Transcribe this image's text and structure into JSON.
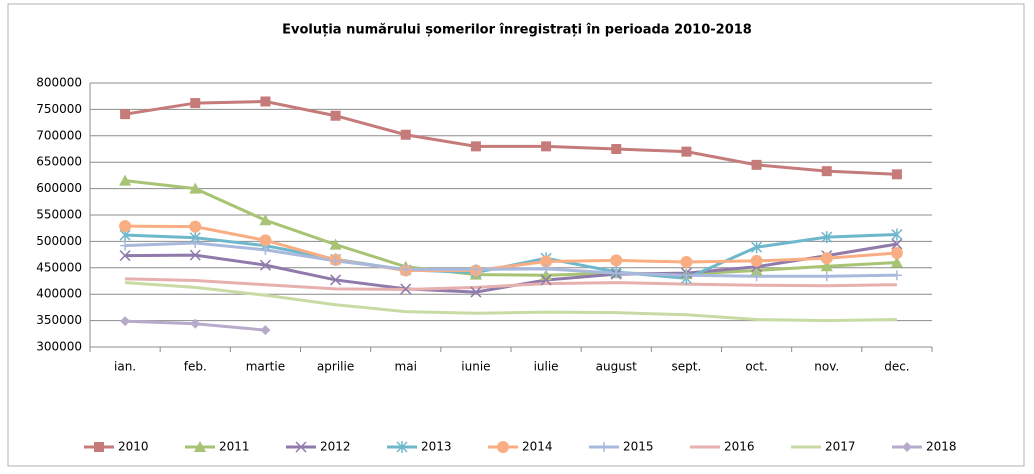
{
  "chart_data": {
    "type": "line",
    "title": "Evoluția numărului  șomerilor înregistrați în perioada 2010-2018",
    "categories": [
      "ian.",
      "feb.",
      "martie",
      "aprilie",
      "mai",
      "iunie",
      "iulie",
      "august",
      "sept.",
      "oct.",
      "nov.",
      "dec."
    ],
    "ylim": [
      300000,
      800000
    ],
    "yticks": [
      300000,
      350000,
      400000,
      450000,
      500000,
      550000,
      600000,
      650000,
      700000,
      750000,
      800000
    ],
    "grid": true,
    "legend": "bottom",
    "series": [
      {
        "name": "2010",
        "color": "#c57b79",
        "marker": "square",
        "values": [
          741000,
          762000,
          765000,
          738000,
          702000,
          680000,
          680000,
          675000,
          670000,
          645000,
          633000,
          627000
        ]
      },
      {
        "name": "2011",
        "color": "#a7c373",
        "marker": "triangle",
        "values": [
          615000,
          600000,
          540000,
          494000,
          452000,
          437000,
          436000,
          440000,
          438000,
          445000,
          453000,
          460000
        ]
      },
      {
        "name": "2012",
        "color": "#8f7aab",
        "marker": "x",
        "values": [
          473000,
          474000,
          455000,
          427000,
          410000,
          404000,
          427000,
          438000,
          440000,
          452000,
          473000,
          495000
        ]
      },
      {
        "name": "2013",
        "color": "#6fb8cc",
        "marker": "star",
        "values": [
          512000,
          507000,
          492000,
          466000,
          446000,
          441000,
          468000,
          442000,
          430000,
          489000,
          508000,
          513000
        ]
      },
      {
        "name": "2014",
        "color": "#f8ae82",
        "marker": "circle",
        "values": [
          529000,
          528000,
          502000,
          465000,
          445000,
          445000,
          462000,
          464000,
          461000,
          463000,
          468000,
          478000
        ]
      },
      {
        "name": "2015",
        "color": "#a9b9dc",
        "marker": "plus",
        "values": [
          492000,
          497000,
          484000,
          463000,
          447000,
          447000,
          448000,
          440000,
          436000,
          434000,
          434000,
          436000
        ]
      },
      {
        "name": "2016",
        "color": "#e6b0ae",
        "marker": "none",
        "values": [
          429000,
          426000,
          418000,
          410000,
          409000,
          413000,
          420000,
          422000,
          419000,
          417000,
          416000,
          418000
        ]
      },
      {
        "name": "2017",
        "color": "#c8dba4",
        "marker": "none",
        "values": [
          422000,
          413000,
          398000,
          380000,
          367000,
          364000,
          366000,
          365000,
          361000,
          352000,
          350000,
          352000
        ]
      },
      {
        "name": "2018",
        "color": "#b6abcb",
        "marker": "diamond",
        "values": [
          349000,
          344000,
          332000,
          null,
          null,
          null,
          null,
          null,
          null,
          null,
          null,
          null
        ]
      }
    ]
  }
}
